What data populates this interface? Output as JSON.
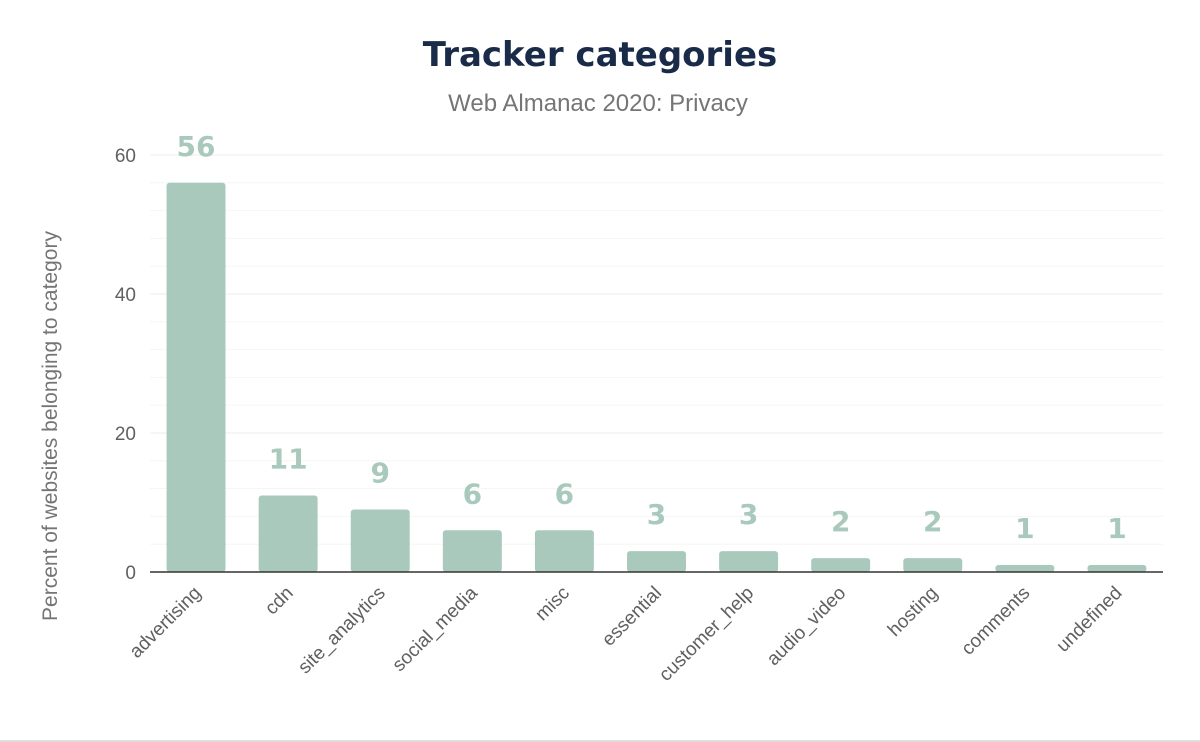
{
  "colors": {
    "bar": "#a8c9bb",
    "data_label": "#a8c9bb",
    "title": "#1a2b49"
  },
  "chart_data": {
    "type": "bar",
    "title": "Tracker categories",
    "subtitle": "Web Almanac 2020: Privacy",
    "xlabel": "",
    "ylabel": "Percent of websites belonging to category",
    "categories": [
      "advertising",
      "cdn",
      "site_analytics",
      "social_media",
      "misc",
      "essential",
      "customer_help",
      "audio_video",
      "hosting",
      "comments",
      "undefined"
    ],
    "values": [
      56,
      11,
      9,
      6,
      6,
      3,
      3,
      2,
      2,
      1,
      1
    ],
    "data_labels": [
      "56",
      "11",
      "9",
      "6",
      "6",
      "3",
      "3",
      "2",
      "2",
      "1",
      "1"
    ],
    "yticks": [
      0,
      20,
      40,
      60
    ],
    "ytick_labels": [
      "0",
      "20",
      "40",
      "60"
    ],
    "ylim": [
      0,
      60
    ],
    "grid": true,
    "legend": "none"
  }
}
